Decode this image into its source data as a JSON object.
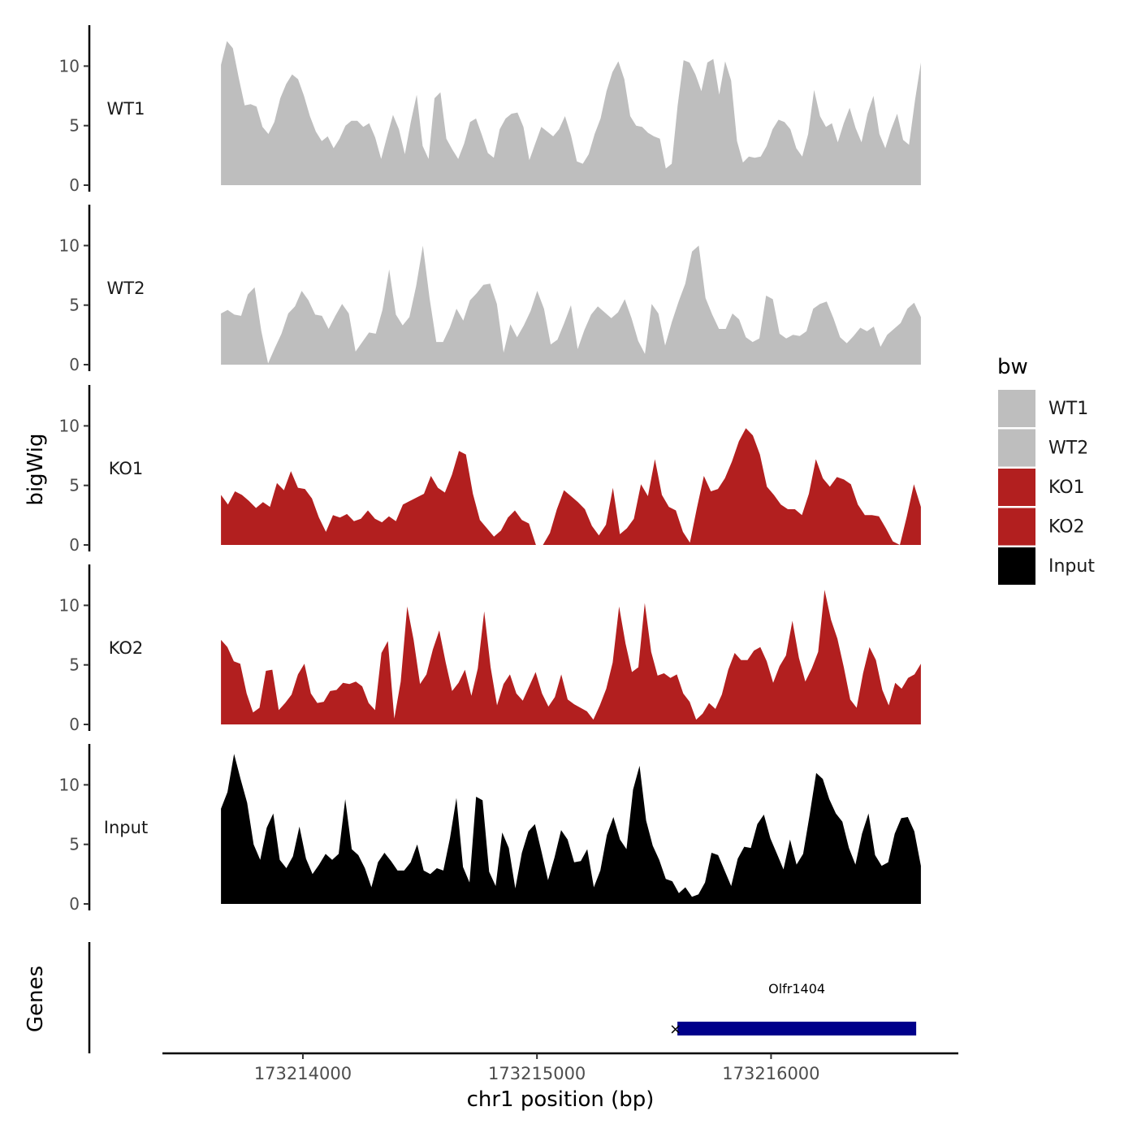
{
  "chart_data": {
    "type": "area",
    "title": "",
    "xlabel": "chr1 position (bp)",
    "ylabel": "bigWig",
    "genes_label": "Genes",
    "xlim": [
      173213400,
      173216800
    ],
    "x_ticks": [
      173214000,
      173215000,
      173216000
    ],
    "ylim": [
      0,
      13.3
    ],
    "y_ticks": [
      0,
      5,
      10
    ],
    "x_start": 173213650,
    "x_end": 173216640,
    "tracks": [
      {
        "name": "WT1",
        "color": "#bebebe",
        "values": [
          10.1,
          12.1,
          11.5,
          9.0,
          6.7,
          6.8,
          6.6,
          4.9,
          4.3,
          5.3,
          7.3,
          8.5,
          9.3,
          8.9,
          7.5,
          5.8,
          4.5,
          3.7,
          4.1,
          3.1,
          3.9,
          5.0,
          5.4,
          5.4,
          4.9,
          5.2,
          4.0,
          2.2,
          4.1,
          5.9,
          4.7,
          2.6,
          5.3,
          7.6,
          3.3,
          2.2,
          7.3,
          7.8,
          3.9,
          3.0,
          2.2,
          3.5,
          5.3,
          5.6,
          4.2,
          2.7,
          2.3,
          4.7,
          5.6,
          6.0,
          6.1,
          4.9,
          2.1,
          3.5,
          4.9,
          4.5,
          4.1,
          4.7,
          5.8,
          4.2,
          2.0,
          1.8,
          2.6,
          4.3,
          5.6,
          7.9,
          9.5,
          10.4,
          8.9,
          5.8,
          5.0,
          4.9,
          4.4,
          4.1,
          3.9,
          1.4,
          1.8,
          6.7,
          10.5,
          10.3,
          9.3,
          7.9,
          10.3,
          10.6,
          7.6,
          10.4,
          8.8,
          3.7,
          1.9,
          2.4,
          2.3,
          2.4,
          3.3,
          4.7,
          5.5,
          5.3,
          4.7,
          3.1,
          2.4,
          4.3,
          8.0,
          5.8,
          4.9,
          5.2,
          3.6,
          5.2,
          6.5,
          4.8,
          3.6,
          6.0,
          7.5,
          4.3,
          3.1,
          4.7,
          6.0,
          3.8,
          3.4,
          7.1,
          10.3
        ]
      },
      {
        "name": "WT2",
        "color": "#bebebe",
        "values": [
          4.3,
          4.6,
          4.2,
          4.1,
          5.9,
          6.5,
          2.8,
          0.1,
          1.4,
          2.6,
          4.3,
          4.9,
          6.2,
          5.4,
          4.2,
          4.1,
          3.0,
          4.1,
          5.1,
          4.3,
          1.1,
          1.9,
          2.7,
          2.6,
          4.6,
          8.0,
          4.2,
          3.3,
          4.0,
          6.6,
          10.0,
          5.6,
          1.9,
          1.9,
          3.1,
          4.7,
          3.7,
          5.4,
          6.0,
          6.7,
          6.8,
          5.1,
          1.0,
          3.4,
          2.3,
          3.3,
          4.5,
          6.2,
          4.7,
          1.7,
          2.1,
          3.5,
          5.0,
          1.3,
          2.9,
          4.2,
          4.9,
          4.4,
          3.9,
          4.4,
          5.5,
          3.9,
          2.0,
          0.9,
          5.1,
          4.3,
          1.6,
          3.6,
          5.3,
          6.8,
          9.5,
          10.0,
          5.6,
          4.2,
          3.0,
          3.0,
          4.3,
          3.8,
          2.3,
          1.9,
          2.2,
          5.8,
          5.5,
          2.6,
          2.2,
          2.5,
          2.4,
          2.8,
          4.7,
          5.1,
          5.3,
          3.9,
          2.3,
          1.8,
          2.4,
          3.1,
          2.8,
          3.2,
          1.5,
          2.5,
          3.0,
          3.5,
          4.7,
          5.2,
          4.0
        ]
      },
      {
        "name": "KO1",
        "color": "#b21f1f",
        "values": [
          4.2,
          3.4,
          4.5,
          4.2,
          3.7,
          3.1,
          3.6,
          3.2,
          5.2,
          4.6,
          6.2,
          4.8,
          4.7,
          3.9,
          2.3,
          1.1,
          2.5,
          2.3,
          2.6,
          2.0,
          2.2,
          2.9,
          2.2,
          1.9,
          2.4,
          2.0,
          3.4,
          3.7,
          4.0,
          4.3,
          5.8,
          4.8,
          4.4,
          5.9,
          7.9,
          7.6,
          4.3,
          2.1,
          1.4,
          0.7,
          1.2,
          2.3,
          2.9,
          2.1,
          1.8,
          0.0,
          0.0,
          1.0,
          3.0,
          4.6,
          4.1,
          3.6,
          3.0,
          1.6,
          0.8,
          1.7,
          4.8,
          0.9,
          1.4,
          2.2,
          5.1,
          4.1,
          7.2,
          4.2,
          3.2,
          2.9,
          1.1,
          0.2,
          3.1,
          5.8,
          4.5,
          4.7,
          5.6,
          7.0,
          8.7,
          9.8,
          9.2,
          7.6,
          4.9,
          4.2,
          3.4,
          3.0,
          3.0,
          2.5,
          4.3,
          7.2,
          5.6,
          4.9,
          5.7,
          5.5,
          5.1,
          3.4,
          2.5,
          2.5,
          2.4,
          1.4,
          0.3,
          0.0,
          2.4,
          5.1,
          3.2
        ]
      },
      {
        "name": "KO2",
        "color": "#b21f1f",
        "values": [
          7.1,
          6.5,
          5.3,
          5.1,
          2.6,
          1.0,
          1.4,
          4.5,
          4.6,
          1.2,
          1.8,
          2.5,
          4.2,
          5.1,
          2.6,
          1.8,
          1.9,
          2.8,
          2.9,
          3.5,
          3.4,
          3.6,
          3.2,
          1.8,
          1.2,
          6.0,
          7.0,
          0.5,
          3.6,
          9.9,
          7.1,
          3.4,
          4.2,
          6.3,
          7.9,
          5.2,
          2.8,
          3.5,
          4.6,
          2.4,
          4.7,
          9.5,
          4.8,
          1.6,
          3.4,
          4.2,
          2.6,
          2.0,
          3.2,
          4.4,
          2.6,
          1.5,
          2.3,
          4.2,
          2.1,
          1.7,
          1.4,
          1.1,
          0.4,
          1.6,
          3.0,
          5.2,
          9.9,
          6.8,
          4.4,
          4.8,
          10.2,
          6.1,
          4.1,
          4.3,
          3.9,
          4.2,
          2.6,
          1.9,
          0.4,
          0.9,
          1.8,
          1.3,
          2.5,
          4.6,
          6.0,
          5.4,
          5.4,
          6.2,
          6.5,
          5.3,
          3.5,
          4.9,
          5.8,
          8.7,
          5.6,
          3.6,
          4.7,
          6.1,
          11.3,
          8.8,
          7.2,
          4.8,
          2.1,
          1.4,
          4.3,
          6.5,
          5.4,
          2.9,
          1.6,
          3.5,
          3.0,
          3.9,
          4.2,
          5.1
        ]
      },
      {
        "name": "Input",
        "color": "#000000",
        "values": [
          8.0,
          9.4,
          12.6,
          10.5,
          8.5,
          5.0,
          3.7,
          6.4,
          7.6,
          3.7,
          3.0,
          4.0,
          6.5,
          3.8,
          2.5,
          3.3,
          4.2,
          3.7,
          4.2,
          8.8,
          4.6,
          4.1,
          3.0,
          1.4,
          3.5,
          4.3,
          3.6,
          2.8,
          2.8,
          3.5,
          5.0,
          2.8,
          2.5,
          3.0,
          2.8,
          5.5,
          8.9,
          3.1,
          1.8,
          9.0,
          8.7,
          2.7,
          1.5,
          6.0,
          4.7,
          1.3,
          4.3,
          6.1,
          6.7,
          4.4,
          2.0,
          3.9,
          6.2,
          5.4,
          3.5,
          3.6,
          4.6,
          1.4,
          2.8,
          5.8,
          7.3,
          5.4,
          4.6,
          9.6,
          11.6,
          7.0,
          4.9,
          3.7,
          2.1,
          1.9,
          0.9,
          1.4,
          0.6,
          0.8,
          1.8,
          4.3,
          4.1,
          2.8,
          1.5,
          3.8,
          4.8,
          4.7,
          6.7,
          7.5,
          5.5,
          4.2,
          2.9,
          5.4,
          3.3,
          4.2,
          7.5,
          11.0,
          10.5,
          8.8,
          7.6,
          6.9,
          4.7,
          3.3,
          5.9,
          7.6,
          4.1,
          3.2,
          3.5,
          5.9,
          7.2,
          7.3,
          6.1,
          3.2
        ]
      }
    ],
    "genes": [
      {
        "name": "Olfr1404",
        "start": 173215600,
        "end": 173216620,
        "color": "#00008b"
      }
    ],
    "legend": {
      "title": "bw",
      "position": "right"
    }
  }
}
